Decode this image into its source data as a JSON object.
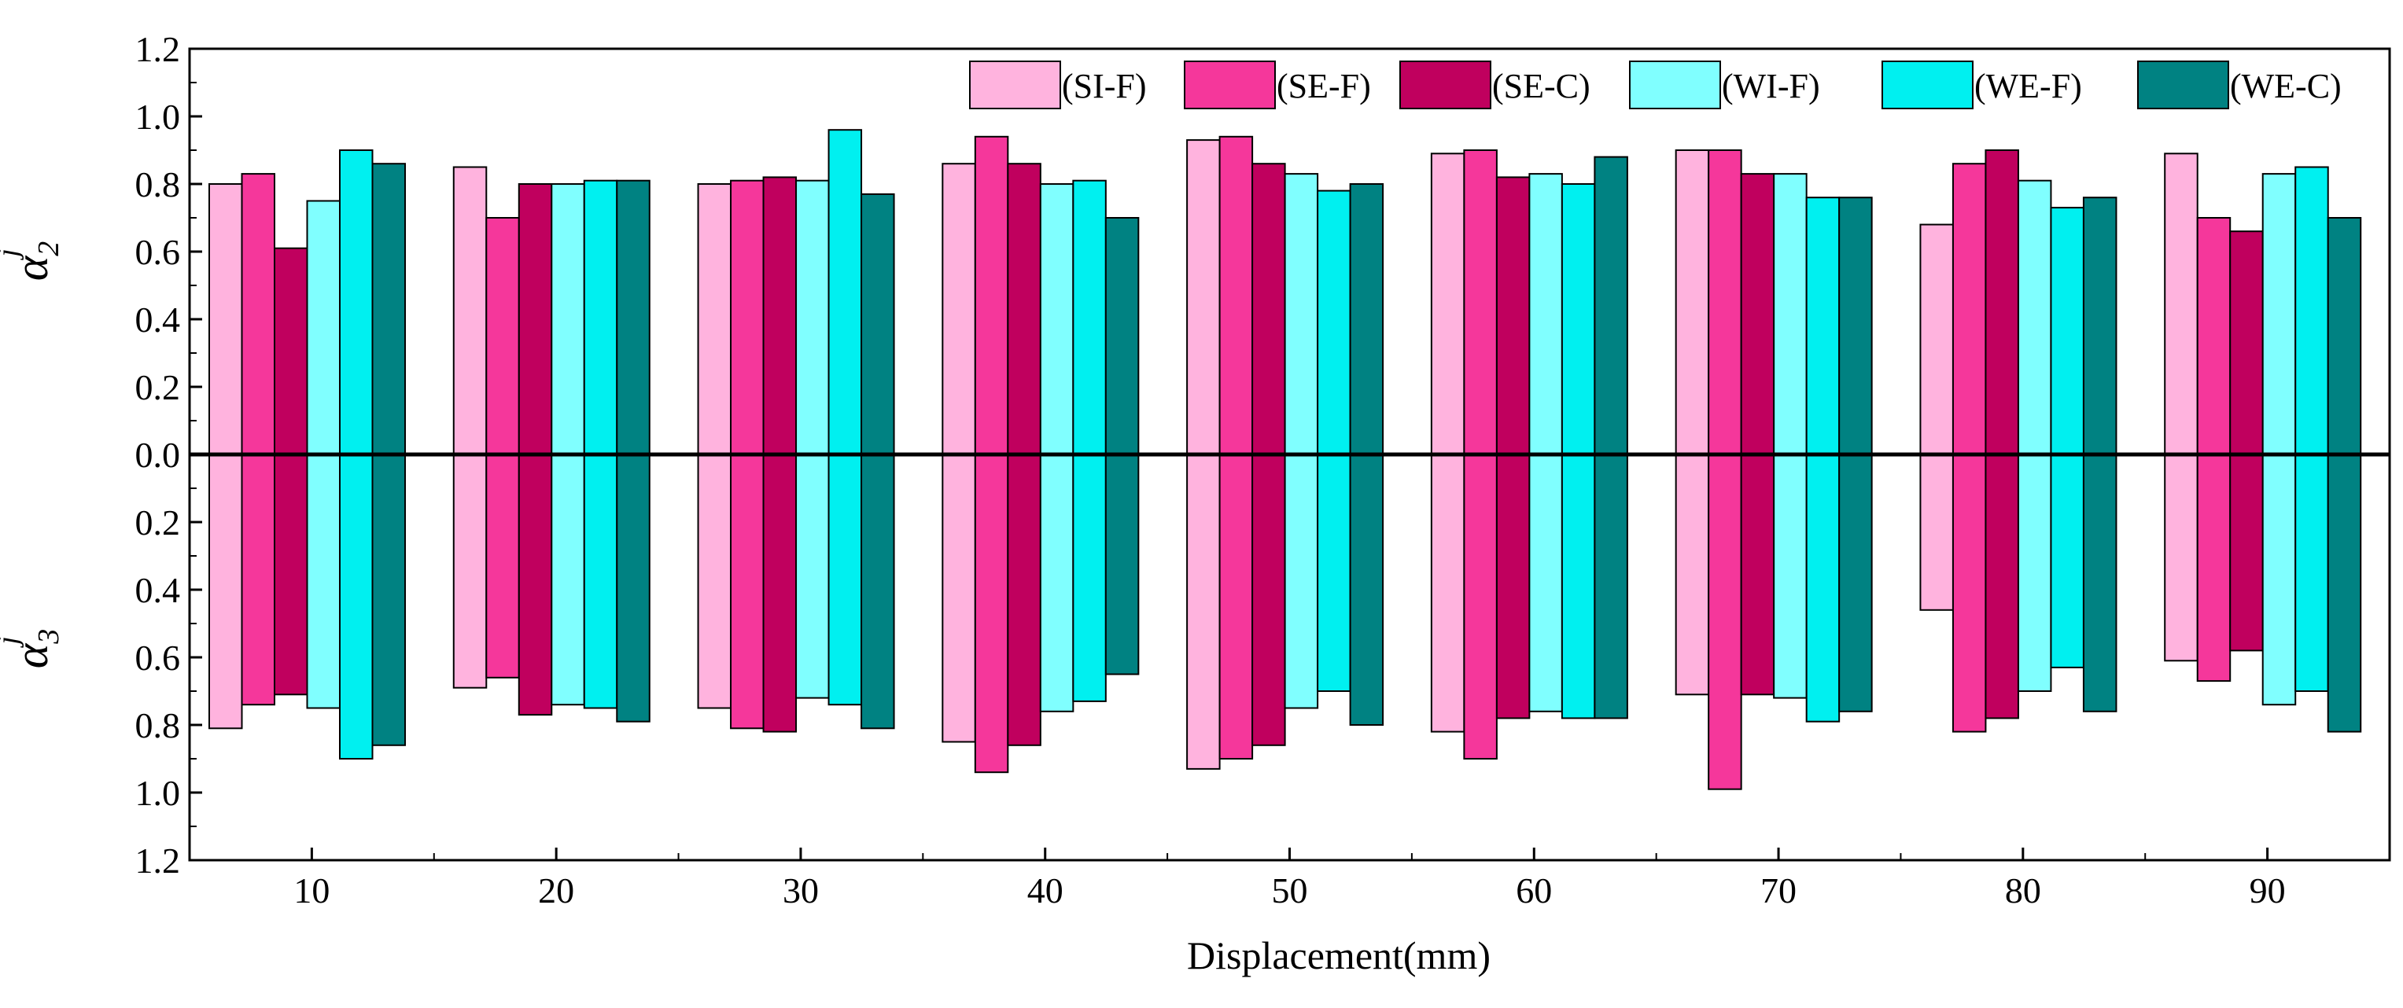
{
  "chart_data": {
    "type": "bar",
    "xlabel": "Displacement(mm)",
    "ylabel_top": {
      "symbol": "α",
      "superscript": "j",
      "subscript": "2"
    },
    "ylabel_bottom": {
      "symbol": "α",
      "superscript": "j",
      "subscript": "3"
    },
    "categories": [
      "10",
      "20",
      "30",
      "40",
      "50",
      "60",
      "70",
      "80",
      "90"
    ],
    "ylim_top": [
      0,
      1.2
    ],
    "ylim_bottom": [
      0,
      1.2
    ],
    "y_ticks": [
      "0.0",
      "0.2",
      "0.4",
      "0.6",
      "0.8",
      "1.0",
      "1.2"
    ],
    "legend_position": "top-right",
    "series": [
      {
        "name": "(SI-F)",
        "color": "#FFB3DE",
        "top": [
          0.8,
          0.85,
          0.8,
          0.86,
          0.93,
          0.89,
          0.9,
          0.68,
          0.89
        ],
        "bottom": [
          0.81,
          0.69,
          0.75,
          0.85,
          0.93,
          0.82,
          0.71,
          0.46,
          0.61
        ]
      },
      {
        "name": "(SE-F)",
        "color": "#F5379B",
        "top": [
          0.83,
          0.7,
          0.81,
          0.94,
          0.94,
          0.9,
          0.9,
          0.86,
          0.7
        ],
        "bottom": [
          0.74,
          0.66,
          0.81,
          0.94,
          0.9,
          0.9,
          0.99,
          0.82,
          0.67
        ]
      },
      {
        "name": "(SE-C)",
        "color": "#C0005E",
        "top": [
          0.61,
          0.8,
          0.82,
          0.86,
          0.86,
          0.82,
          0.83,
          0.9,
          0.66
        ],
        "bottom": [
          0.71,
          0.77,
          0.82,
          0.86,
          0.86,
          0.78,
          0.71,
          0.78,
          0.58
        ]
      },
      {
        "name": "(WI-F)",
        "color": "#80FFFF",
        "top": [
          0.75,
          0.8,
          0.81,
          0.8,
          0.83,
          0.83,
          0.83,
          0.81,
          0.83
        ],
        "bottom": [
          0.75,
          0.74,
          0.72,
          0.76,
          0.75,
          0.76,
          0.72,
          0.7,
          0.74
        ]
      },
      {
        "name": "(WE-F)",
        "color": "#00F0F0",
        "top": [
          0.9,
          0.81,
          0.96,
          0.81,
          0.78,
          0.8,
          0.76,
          0.73,
          0.85
        ],
        "bottom": [
          0.9,
          0.75,
          0.74,
          0.73,
          0.7,
          0.78,
          0.79,
          0.63,
          0.7
        ]
      },
      {
        "name": "(WE-C)",
        "color": "#008282",
        "top": [
          0.86,
          0.81,
          0.77,
          0.7,
          0.8,
          0.88,
          0.76,
          0.76,
          0.7
        ],
        "bottom": [
          0.86,
          0.79,
          0.81,
          0.65,
          0.8,
          0.78,
          0.76,
          0.76,
          0.82
        ]
      }
    ]
  }
}
